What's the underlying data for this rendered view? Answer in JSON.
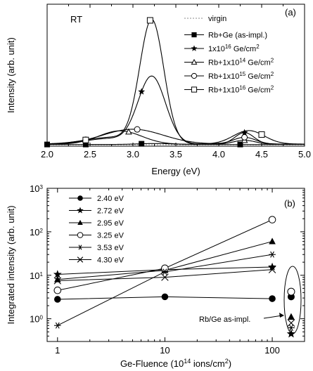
{
  "chart_data": [
    {
      "type": "line",
      "panel_label": "(a)",
      "annotation": "RT",
      "xlabel": "Energy (eV)",
      "ylabel": "Intensity (arb. unit)",
      "xlim": [
        2.0,
        5.0
      ],
      "ylim": [
        0,
        100
      ],
      "xticks": [
        "2.0",
        "2.5",
        "3.0",
        "3.5",
        "4.0",
        "4.5",
        "5.0"
      ],
      "legend_position": "top-right",
      "series": [
        {
          "name": "virgin",
          "marker": "none",
          "dash": true,
          "peaks": [],
          "baseline": 0.0,
          "marker_x": []
        },
        {
          "name": "Rb+Ge (as-impl.)",
          "marker": "filled-square",
          "peaks": [
            {
              "center": 3.25,
              "height": 0.7,
              "width": 0.2
            }
          ],
          "baseline": 0.2,
          "marker_x": [
            2.0,
            2.45,
            3.1,
            4.25
          ]
        },
        {
          "name": "1x10^16 Ge/cm^2",
          "name_parts": [
            "1x10",
            "16",
            " Ge/cm",
            "2"
          ],
          "marker": "star",
          "peaks": [
            {
              "center": 3.22,
              "height": 50.0,
              "width": 0.16
            },
            {
              "center": 4.3,
              "height": 8.5,
              "width": 0.11
            },
            {
              "center": 2.7,
              "height": 4.0,
              "width": 0.25
            }
          ],
          "baseline": 0.5,
          "marker_x": [
            3.1,
            4.3
          ]
        },
        {
          "name": "Rb+1x10^14 Ge/cm^2",
          "name_parts": [
            "Rb+1x10",
            "14",
            " Ge/cm",
            "2"
          ],
          "marker": "triangle",
          "peaks": [
            {
              "center": 2.85,
              "height": 10.0,
              "width": 0.25
            },
            {
              "center": 4.3,
              "height": 3.0,
              "width": 0.13
            }
          ],
          "baseline": 0.3,
          "marker_x": [
            2.95,
            4.3
          ]
        },
        {
          "name": "Rb+1x10^15 Ge/cm^2",
          "name_parts": [
            "Rb+1x10",
            "15",
            " Ge/cm",
            "2"
          ],
          "marker": "circle",
          "peaks": [
            {
              "center": 3.0,
              "height": 11.0,
              "width": 0.35
            },
            {
              "center": 4.3,
              "height": 5.0,
              "width": 0.13
            }
          ],
          "baseline": 0.5,
          "marker_x": [
            2.45,
            3.05,
            4.3
          ]
        },
        {
          "name": "Rb+1x10^16 Ge/cm^2",
          "name_parts": [
            "Rb+1x10",
            "16",
            " Ge/cm",
            "2"
          ],
          "marker": "open-square",
          "peaks": [
            {
              "center": 3.22,
              "height": 91.0,
              "width": 0.14
            },
            {
              "center": 4.35,
              "height": 10.0,
              "width": 0.18
            },
            {
              "center": 2.75,
              "height": 5.0,
              "width": 0.3
            }
          ],
          "baseline": 0.5,
          "marker_x": [
            2.45,
            3.2,
            4.5
          ]
        }
      ]
    },
    {
      "type": "line",
      "panel_label": "(b)",
      "xlabel_parts": [
        "Ge-Fluence (10",
        "14",
        " ions/cm",
        "2",
        ")"
      ],
      "ylabel": "Integrated intensity (arb. unit)",
      "xscale": "log",
      "yscale": "log",
      "xlim": [
        0.8,
        200
      ],
      "ylim": [
        0.3,
        1000
      ],
      "xticks": [
        {
          "value": 1,
          "label": "1"
        },
        {
          "value": 10,
          "label": "10"
        },
        {
          "value": 100,
          "label": "100"
        }
      ],
      "yticks": [
        {
          "value": 1,
          "base": "10",
          "exp": "0"
        },
        {
          "value": 10,
          "base": "10",
          "exp": "1"
        },
        {
          "value": 100,
          "base": "10",
          "exp": "2"
        },
        {
          "value": 1000,
          "base": "10",
          "exp": "3"
        }
      ],
      "legend_position": "top-left",
      "annotation": "Rb/Ge as-impl.",
      "as_implanted_x": 150,
      "series": [
        {
          "name": "2.40 eV",
          "marker": "filled-circle",
          "x": [
            1,
            10,
            100
          ],
          "y": [
            2.8,
            3.2,
            2.9
          ],
          "as_impl": 3.2
        },
        {
          "name": "2.72 eV",
          "marker": "star",
          "x": [
            1,
            10,
            100
          ],
          "y": [
            10.5,
            13.5,
            15.5
          ],
          "as_impl": 0.45
        },
        {
          "name": "2.95 eV",
          "marker": "filled-triangle",
          "x": [
            1,
            10,
            100
          ],
          "y": [
            8.0,
            13.0,
            60.0
          ],
          "as_impl": 1.1
        },
        {
          "name": "3.25 eV",
          "marker": "open-circle",
          "x": [
            1,
            10,
            100
          ],
          "y": [
            4.5,
            14.5,
            190.0
          ],
          "as_impl": 4.2
        },
        {
          "name": "3.53 eV",
          "marker": "asterisk",
          "x": [
            1,
            10,
            100
          ],
          "y": [
            0.7,
            12.0,
            30.0
          ],
          "as_impl": 0.62
        },
        {
          "name": "4.30 eV",
          "marker": "cross",
          "x": [
            1,
            10,
            100
          ],
          "y": [
            7.5,
            9.0,
            13.5
          ],
          "as_impl": 0.8
        }
      ]
    }
  ]
}
